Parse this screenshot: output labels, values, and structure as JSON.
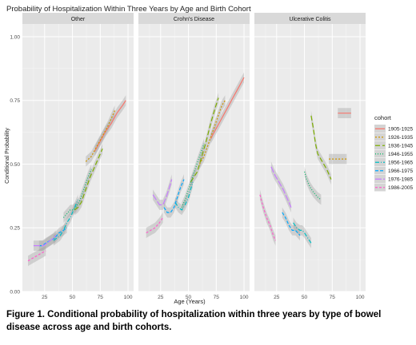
{
  "chart_data": {
    "type": "line",
    "title": "Probability of Hospitalization Within Three Years by Age and Birth Cohort",
    "xlabel": "Age (Years)",
    "ylabel": "Conditional Probability",
    "xlim": [
      5,
      105
    ],
    "ylim": [
      0,
      1.05
    ],
    "x_ticks": [
      "25",
      "50",
      "75",
      "100"
    ],
    "y_ticks": [
      "0.00",
      "0.25",
      "0.50",
      "0.75",
      "1.00"
    ],
    "grid": true,
    "legend_position": "right",
    "legend_title": "cohort",
    "panels": [
      {
        "label": "Other",
        "series": [
          {
            "name": "1905-1925",
            "points": [
              [
                70,
                0.55
              ],
              [
                75,
                0.59
              ],
              [
                80,
                0.63
              ],
              [
                85,
                0.66
              ],
              [
                90,
                0.7
              ],
              [
                95,
                0.73
              ],
              [
                98,
                0.75
              ]
            ]
          },
          {
            "name": "1926-1935",
            "points": [
              [
                62,
                0.51
              ],
              [
                67,
                0.53
              ],
              [
                72,
                0.57
              ],
              [
                77,
                0.61
              ],
              [
                82,
                0.65
              ],
              [
                86,
                0.69
              ],
              [
                88,
                0.71
              ]
            ]
          },
          {
            "name": "1936-1945",
            "points": [
              [
                52,
                0.32
              ],
              [
                55,
                0.33
              ],
              [
                58,
                0.35
              ],
              [
                62,
                0.4
              ],
              [
                66,
                0.45
              ],
              [
                70,
                0.49
              ],
              [
                74,
                0.53
              ],
              [
                77,
                0.56
              ]
            ]
          },
          {
            "name": "1946-1955",
            "points": [
              [
                42,
                0.29
              ],
              [
                44,
                0.3
              ],
              [
                46,
                0.31
              ],
              [
                48,
                0.32
              ],
              [
                50,
                0.32
              ],
              [
                53,
                0.33
              ],
              [
                56,
                0.35
              ],
              [
                60,
                0.4
              ],
              [
                64,
                0.45
              ],
              [
                67,
                0.48
              ]
            ]
          },
          {
            "name": "1956-1965",
            "points": [
              [
                33,
                0.2
              ],
              [
                36,
                0.21
              ],
              [
                39,
                0.22
              ],
              [
                42,
                0.24
              ],
              [
                45,
                0.27
              ],
              [
                48,
                0.29
              ],
              [
                50,
                0.31
              ],
              [
                52,
                0.33
              ],
              [
                55,
                0.36
              ]
            ]
          },
          {
            "name": "1966-1975",
            "points": [
              [
                20,
                0.18
              ],
              [
                23,
                0.18
              ],
              [
                26,
                0.19
              ],
              [
                30,
                0.2
              ],
              [
                34,
                0.21
              ],
              [
                38,
                0.23
              ],
              [
                42,
                0.24
              ],
              [
                45,
                0.25
              ]
            ]
          },
          {
            "name": "1976-1985",
            "points": [
              [
                15,
                0.18
              ],
              [
                18,
                0.18
              ],
              [
                21,
                0.18
              ],
              [
                24,
                0.18
              ],
              [
                27,
                0.19
              ],
              [
                30,
                0.2
              ],
              [
                33,
                0.21
              ],
              [
                35,
                0.22
              ]
            ]
          },
          {
            "name": "1986-2005",
            "points": [
              [
                10,
                0.12
              ],
              [
                14,
                0.13
              ],
              [
                18,
                0.14
              ],
              [
                22,
                0.15
              ],
              [
                26,
                0.16
              ]
            ]
          }
        ]
      },
      {
        "label": "Crohn's Disease",
        "series": [
          {
            "name": "1905-1925",
            "points": [
              [
                70,
                0.6
              ],
              [
                75,
                0.64
              ],
              [
                80,
                0.68
              ],
              [
                85,
                0.72
              ],
              [
                90,
                0.76
              ],
              [
                95,
                0.8
              ],
              [
                100,
                0.84
              ]
            ]
          },
          {
            "name": "1926-1935",
            "points": [
              [
                60,
                0.5
              ],
              [
                64,
                0.53
              ],
              [
                68,
                0.58
              ],
              [
                72,
                0.63
              ],
              [
                76,
                0.68
              ],
              [
                80,
                0.73
              ],
              [
                83,
                0.75
              ]
            ]
          },
          {
            "name": "1936-1945",
            "points": [
              [
                52,
                0.43
              ],
              [
                55,
                0.45
              ],
              [
                58,
                0.47
              ],
              [
                62,
                0.53
              ],
              [
                66,
                0.59
              ],
              [
                70,
                0.66
              ],
              [
                74,
                0.72
              ],
              [
                77,
                0.76
              ]
            ]
          },
          {
            "name": "1946-1955",
            "points": [
              [
                44,
                0.33
              ],
              [
                47,
                0.36
              ],
              [
                50,
                0.4
              ],
              [
                53,
                0.44
              ],
              [
                56,
                0.48
              ],
              [
                60,
                0.53
              ],
              [
                64,
                0.58
              ]
            ]
          },
          {
            "name": "1956-1965",
            "points": [
              [
                38,
                0.35
              ],
              [
                41,
                0.33
              ],
              [
                44,
                0.32
              ],
              [
                47,
                0.34
              ],
              [
                50,
                0.37
              ],
              [
                52,
                0.4
              ],
              [
                54,
                0.43
              ]
            ]
          },
          {
            "name": "1966-1975",
            "points": [
              [
                28,
                0.33
              ],
              [
                31,
                0.31
              ],
              [
                34,
                0.31
              ],
              [
                37,
                0.33
              ],
              [
                40,
                0.37
              ],
              [
                43,
                0.41
              ],
              [
                46,
                0.44
              ]
            ]
          },
          {
            "name": "1976-1985",
            "points": [
              [
                18,
                0.38
              ],
              [
                21,
                0.36
              ],
              [
                24,
                0.34
              ],
              [
                27,
                0.34
              ],
              [
                30,
                0.37
              ],
              [
                33,
                0.41
              ],
              [
                35,
                0.44
              ]
            ]
          },
          {
            "name": "1986-2005",
            "points": [
              [
                12,
                0.23
              ],
              [
                16,
                0.24
              ],
              [
                20,
                0.25
              ],
              [
                24,
                0.27
              ],
              [
                27,
                0.29
              ]
            ]
          }
        ]
      },
      {
        "label": "Ulcerative Colitis",
        "series": [
          {
            "name": "1905-1925",
            "points": [
              [
                80,
                0.7
              ],
              [
                84,
                0.7
              ],
              [
                88,
                0.7
              ],
              [
                92,
                0.7
              ]
            ]
          },
          {
            "name": "1926-1935",
            "points": [
              [
                72,
                0.52
              ],
              [
                76,
                0.52
              ],
              [
                80,
                0.52
              ],
              [
                84,
                0.52
              ],
              [
                88,
                0.52
              ]
            ]
          },
          {
            "name": "1936-1945",
            "points": [
              [
                56,
                0.69
              ],
              [
                58,
                0.64
              ],
              [
                60,
                0.58
              ],
              [
                62,
                0.54
              ],
              [
                66,
                0.51
              ],
              [
                70,
                0.48
              ],
              [
                74,
                0.44
              ]
            ]
          },
          {
            "name": "1946-1955",
            "points": [
              [
                50,
                0.47
              ],
              [
                52,
                0.44
              ],
              [
                55,
                0.41
              ],
              [
                58,
                0.39
              ],
              [
                62,
                0.37
              ],
              [
                65,
                0.36
              ]
            ]
          },
          {
            "name": "1956-1965",
            "points": [
              [
                40,
                0.27
              ],
              [
                43,
                0.25
              ],
              [
                46,
                0.24
              ],
              [
                48,
                0.24
              ],
              [
                50,
                0.23
              ],
              [
                53,
                0.21
              ],
              [
                56,
                0.19
              ]
            ]
          },
          {
            "name": "1966-1975",
            "points": [
              [
                30,
                0.31
              ],
              [
                33,
                0.29
              ],
              [
                36,
                0.26
              ],
              [
                39,
                0.24
              ],
              [
                42,
                0.24
              ],
              [
                44,
                0.23
              ],
              [
                46,
                0.22
              ]
            ]
          },
          {
            "name": "1976-1985",
            "points": [
              [
                20,
                0.49
              ],
              [
                23,
                0.46
              ],
              [
                27,
                0.43
              ],
              [
                31,
                0.4
              ],
              [
                35,
                0.36
              ],
              [
                38,
                0.33
              ]
            ]
          },
          {
            "name": "1986-2005",
            "points": [
              [
                10,
                0.38
              ],
              [
                13,
                0.33
              ],
              [
                16,
                0.29
              ],
              [
                19,
                0.26
              ],
              [
                22,
                0.22
              ],
              [
                24,
                0.2
              ]
            ]
          }
        ]
      }
    ],
    "cohorts": [
      {
        "name": "1905-1925",
        "color": "#f8766d",
        "dash": ""
      },
      {
        "name": "1926-1935",
        "color": "#cd9600",
        "dash": "2,2"
      },
      {
        "name": "1936-1945",
        "color": "#7cae00",
        "dash": "6,3"
      },
      {
        "name": "1946-1955",
        "color": "#00be67",
        "dash": "1,2"
      },
      {
        "name": "1956-1965",
        "color": "#00bfc4",
        "dash": "5,2,1,2"
      },
      {
        "name": "1966-1975",
        "color": "#00a9ff",
        "dash": "4,2"
      },
      {
        "name": "1976-1985",
        "color": "#c77cff",
        "dash": "8,2"
      },
      {
        "name": "1986-2005",
        "color": "#ff61cc",
        "dash": "3,2"
      }
    ]
  },
  "caption": "Figure 1. Conditional probability of hospitalization within three years by type of bowel disease across age and birth cohorts."
}
